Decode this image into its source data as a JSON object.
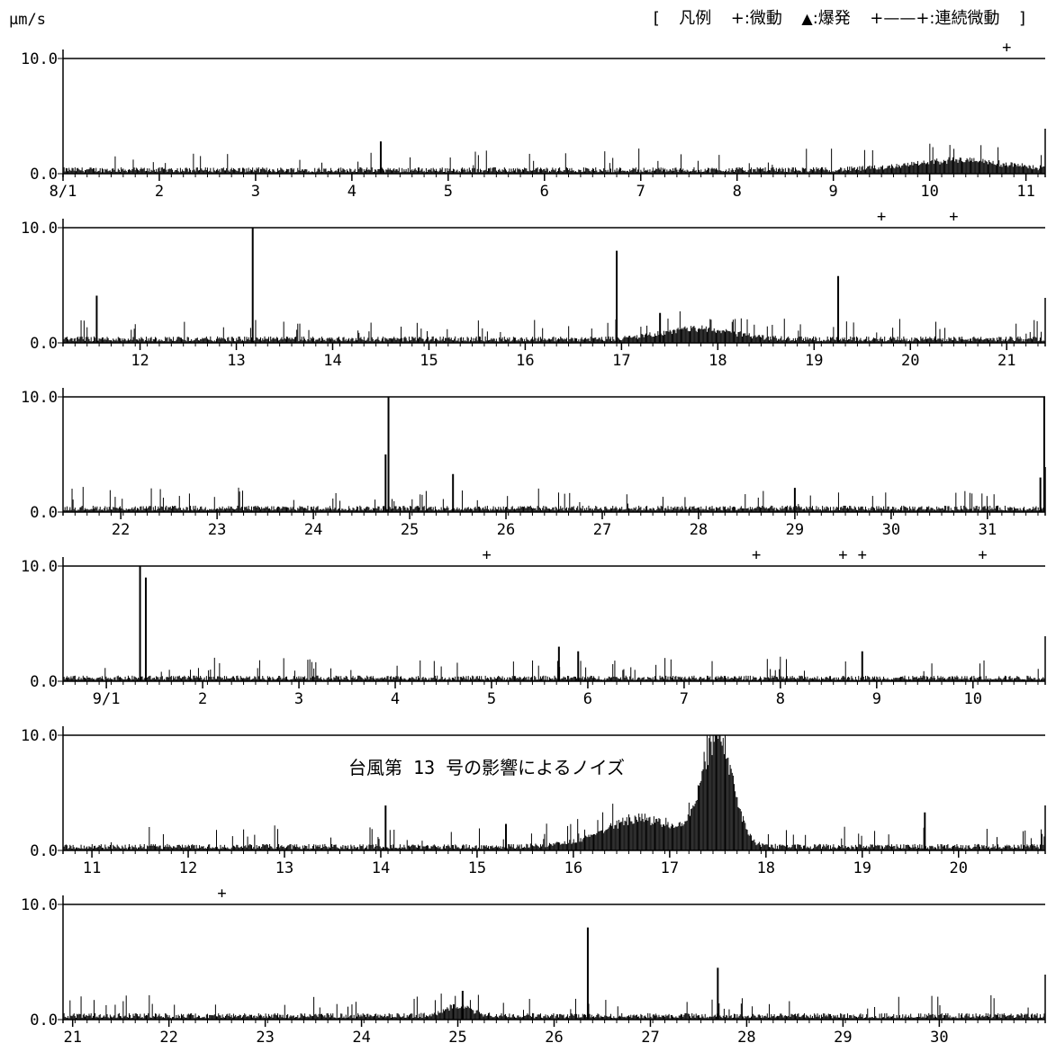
{
  "unit_label": "μm/s",
  "legend": {
    "bracket_open": "[",
    "title": "凡例",
    "tremor_symbol": "+",
    "tremor_label": ":微動",
    "eruption_symbol": "▲",
    "eruption_label": ":爆発",
    "continuous_symbol": "+——+",
    "continuous_label": ":連続微動",
    "bracket_close": "]"
  },
  "chart_data": {
    "type": "line",
    "ylabel": "μm/s",
    "y_ticks": [
      "10.0",
      "0.0"
    ],
    "ylim": [
      0,
      10
    ],
    "colors": {
      "trace": "#000000",
      "background": "#ffffff"
    },
    "panels": [
      {
        "x_ticks": [
          "8/1",
          "2",
          "3",
          "4",
          "5",
          "6",
          "7",
          "8",
          "9",
          "10",
          "11"
        ],
        "tick_offsets": [
          0,
          1,
          2,
          3,
          4,
          5,
          6,
          7,
          8,
          9,
          10
        ],
        "day_span": 10.2,
        "baseline": 0.4,
        "events": [
          {
            "day": 3.3,
            "value": 2.8
          },
          {
            "day": 10.8,
            "value": 3.6
          }
        ],
        "humps": [
          {
            "center": 9.3,
            "width": 0.7,
            "peak": 0.8
          }
        ],
        "tremor_marks": [
          9.8
        ],
        "annotation": ""
      },
      {
        "x_ticks": [
          "12",
          "13",
          "14",
          "15",
          "16",
          "17",
          "18",
          "19",
          "20",
          "21"
        ],
        "tick_offsets": [
          0.8,
          1.8,
          2.8,
          3.8,
          4.8,
          5.8,
          6.8,
          7.8,
          8.8,
          9.8
        ],
        "day_span": 10.2,
        "baseline": 0.4,
        "events": [
          {
            "day": 0.35,
            "value": 4.1
          },
          {
            "day": 1.97,
            "value": 10.0
          },
          {
            "day": 5.75,
            "value": 8.0
          },
          {
            "day": 8.05,
            "value": 5.8
          },
          {
            "day": 6.2,
            "value": 2.6
          }
        ],
        "humps": [
          {
            "center": 6.6,
            "width": 0.5,
            "peak": 0.9
          }
        ],
        "tremor_marks": [
          8.5,
          9.25
        ],
        "annotation": ""
      },
      {
        "x_ticks": [
          "22",
          "23",
          "24",
          "25",
          "26",
          "27",
          "28",
          "29",
          "30",
          "31"
        ],
        "tick_offsets": [
          0.6,
          1.6,
          2.6,
          3.6,
          4.6,
          5.6,
          6.6,
          7.6,
          8.6,
          9.6
        ],
        "day_span": 10.2,
        "baseline": 0.4,
        "events": [
          {
            "day": 3.38,
            "value": 10.0
          },
          {
            "day": 3.35,
            "value": 5.0
          },
          {
            "day": 4.05,
            "value": 3.3
          },
          {
            "day": 7.6,
            "value": 2.1
          },
          {
            "day": 10.15,
            "value": 3.0
          },
          {
            "day": 10.19,
            "value": 10.0
          }
        ],
        "humps": [],
        "tremor_marks": [],
        "annotation": ""
      },
      {
        "x_ticks": [
          "9/1",
          "2",
          "3",
          "4",
          "5",
          "6",
          "7",
          "8",
          "9",
          "10"
        ],
        "tick_offsets": [
          0.45,
          1.45,
          2.45,
          3.45,
          4.45,
          5.45,
          6.45,
          7.45,
          8.45,
          9.45
        ],
        "day_span": 10.2,
        "baseline": 0.35,
        "events": [
          {
            "day": 0.8,
            "value": 10.0
          },
          {
            "day": 0.86,
            "value": 9.0
          },
          {
            "day": 5.15,
            "value": 3.0
          },
          {
            "day": 5.35,
            "value": 2.6
          },
          {
            "day": 8.3,
            "value": 2.6
          }
        ],
        "humps": [],
        "tremor_marks": [
          4.4,
          7.2,
          8.1,
          8.3,
          9.55
        ],
        "annotation": ""
      },
      {
        "x_ticks": [
          "11",
          "12",
          "13",
          "14",
          "15",
          "16",
          "17",
          "18",
          "19",
          "20"
        ],
        "tick_offsets": [
          0.3,
          1.3,
          2.3,
          3.3,
          4.3,
          5.3,
          6.3,
          7.3,
          8.3,
          9.3
        ],
        "day_span": 10.2,
        "baseline": 0.4,
        "events": [
          {
            "day": 3.35,
            "value": 3.9
          },
          {
            "day": 4.6,
            "value": 2.3
          },
          {
            "day": 8.95,
            "value": 3.3
          }
        ],
        "humps": [
          {
            "center": 6.0,
            "width": 0.55,
            "peak": 2.4
          },
          {
            "center": 6.8,
            "width": 0.22,
            "peak": 9.5
          }
        ],
        "tremor_marks": [],
        "annotation": "台風第 13 号の影響によるノイズ"
      },
      {
        "x_ticks": [
          "21",
          "22",
          "23",
          "24",
          "25",
          "26",
          "27",
          "28",
          "29",
          "30"
        ],
        "tick_offsets": [
          0.1,
          1.1,
          2.1,
          3.1,
          4.1,
          5.1,
          6.1,
          7.1,
          8.1,
          9.1
        ],
        "day_span": 10.2,
        "baseline": 0.4,
        "events": [
          {
            "day": 4.15,
            "value": 2.5
          },
          {
            "day": 5.45,
            "value": 8.0
          },
          {
            "day": 6.8,
            "value": 4.5
          }
        ],
        "humps": [
          {
            "center": 4.1,
            "width": 0.2,
            "peak": 0.8
          }
        ],
        "tremor_marks": [
          1.65
        ],
        "annotation": ""
      }
    ]
  }
}
